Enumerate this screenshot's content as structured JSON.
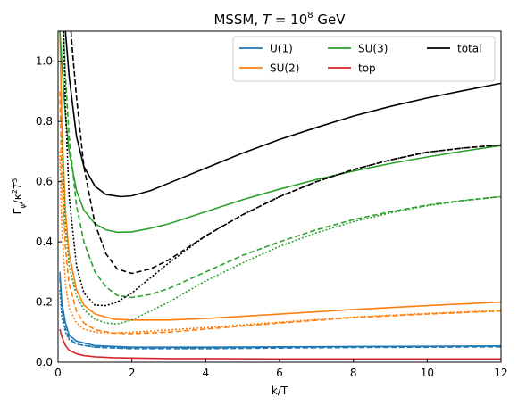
{
  "chart_data": {
    "type": "line",
    "title_main": "MSSM, ",
    "title_math": "T",
    "title_eq": " = 10",
    "title_exp": "8",
    "title_unit": " GeV",
    "xlabel": "k/T",
    "ylabel_gamma": "Γ",
    "ylabel_sub": "ψ",
    "ylabel_rest": "/κ",
    "ylabel_sup1": "2",
    "ylabel_T": "T",
    "ylabel_sup2": "3",
    "xlim": [
      0,
      12
    ],
    "ylim": [
      0,
      1.1
    ],
    "x_ticks": [
      0,
      2,
      4,
      6,
      8,
      10,
      12
    ],
    "x_tick_labels": [
      "0",
      "2",
      "4",
      "6",
      "8",
      "10",
      "12"
    ],
    "y_ticks": [
      0.0,
      0.2,
      0.4,
      0.6,
      0.8,
      1.0
    ],
    "y_tick_labels": [
      "0.0",
      "0.2",
      "0.4",
      "0.6",
      "0.8",
      "1.0"
    ],
    "grid": false,
    "legend_position": "top-right",
    "legend_columns": 3,
    "legend": [
      {
        "label": "U(1)",
        "color": "#1f77b4"
      },
      {
        "label": "SU(2)",
        "color": "#ff7f0e"
      },
      {
        "label": "SU(3)",
        "color": "#2ca02c"
      },
      {
        "label": "top",
        "color": "#d62728"
      },
      {
        "label": "total",
        "color": "#000000"
      }
    ],
    "series": [
      {
        "group": "U(1)",
        "style": "solid",
        "color": "#1f77b4",
        "x": [
          0.05,
          0.1,
          0.2,
          0.3,
          0.5,
          1,
          2,
          4,
          6,
          8,
          10,
          12
        ],
        "y": [
          0.3,
          0.2,
          0.13,
          0.09,
          0.07,
          0.055,
          0.05,
          0.05,
          0.051,
          0.052,
          0.053,
          0.054
        ]
      },
      {
        "group": "U(1)",
        "style": "dashed",
        "color": "#1f77b4",
        "x": [
          0.05,
          0.1,
          0.2,
          0.3,
          0.5,
          1,
          2,
          4,
          6,
          8,
          10,
          12
        ],
        "y": [
          0.28,
          0.18,
          0.11,
          0.08,
          0.06,
          0.05,
          0.045,
          0.045,
          0.047,
          0.049,
          0.05,
          0.051
        ]
      },
      {
        "group": "U(1)",
        "style": "dotted",
        "color": "#1f77b4",
        "x": [
          0.05,
          0.1,
          0.2,
          0.3,
          0.5,
          1,
          2,
          4,
          6,
          8,
          10,
          12
        ],
        "y": [
          0.24,
          0.15,
          0.1,
          0.075,
          0.06,
          0.05,
          0.046,
          0.047,
          0.049,
          0.051,
          0.052,
          0.053
        ]
      },
      {
        "group": "SU(2)",
        "style": "solid",
        "color": "#ff7f0e",
        "x": [
          0.05,
          0.1,
          0.2,
          0.3,
          0.5,
          0.7,
          1,
          1.5,
          2,
          3,
          4,
          6,
          8,
          10,
          12
        ],
        "y": [
          1.1,
          0.8,
          0.5,
          0.36,
          0.24,
          0.19,
          0.16,
          0.143,
          0.14,
          0.14,
          0.145,
          0.16,
          0.175,
          0.188,
          0.2
        ]
      },
      {
        "group": "SU(2)",
        "style": "dashed",
        "color": "#ff7f0e",
        "x": [
          0.05,
          0.1,
          0.2,
          0.3,
          0.5,
          0.7,
          1,
          1.5,
          2,
          3,
          4,
          6,
          8,
          10,
          12
        ],
        "y": [
          0.9,
          0.62,
          0.38,
          0.26,
          0.17,
          0.13,
          0.108,
          0.097,
          0.095,
          0.1,
          0.11,
          0.13,
          0.148,
          0.16,
          0.17
        ]
      },
      {
        "group": "SU(2)",
        "style": "dotted",
        "color": "#ff7f0e",
        "x": [
          0.05,
          0.1,
          0.2,
          0.3,
          0.5,
          0.7,
          1,
          1.5,
          2,
          3,
          4,
          6,
          8,
          10,
          12
        ],
        "y": [
          0.7,
          0.45,
          0.26,
          0.18,
          0.13,
          0.11,
          0.1,
          0.097,
          0.1,
          0.107,
          0.115,
          0.133,
          0.15,
          0.162,
          0.172
        ]
      },
      {
        "group": "SU(3)",
        "style": "solid",
        "color": "#2ca02c",
        "x": [
          0.05,
          0.1,
          0.2,
          0.3,
          0.5,
          0.7,
          1,
          1.3,
          1.6,
          2,
          2.5,
          3,
          4,
          5,
          6,
          7,
          8,
          9,
          10,
          11,
          12
        ],
        "y": [
          1.1,
          1.0,
          0.82,
          0.7,
          0.57,
          0.505,
          0.46,
          0.44,
          0.432,
          0.433,
          0.445,
          0.46,
          0.5,
          0.54,
          0.575,
          0.607,
          0.635,
          0.66,
          0.682,
          0.702,
          0.72
        ]
      },
      {
        "group": "SU(3)",
        "style": "dashed",
        "color": "#2ca02c",
        "x": [
          0.15,
          0.2,
          0.3,
          0.5,
          0.7,
          1,
          1.3,
          1.6,
          2,
          2.5,
          3,
          4,
          5,
          6,
          7,
          8,
          9,
          10,
          11,
          12
        ],
        "y": [
          1.1,
          0.95,
          0.75,
          0.52,
          0.4,
          0.3,
          0.25,
          0.222,
          0.215,
          0.225,
          0.245,
          0.3,
          0.355,
          0.4,
          0.44,
          0.474,
          0.5,
          0.522,
          0.538,
          0.55
        ]
      },
      {
        "group": "SU(3)",
        "style": "dotted",
        "color": "#2ca02c",
        "x": [
          0.1,
          0.2,
          0.3,
          0.5,
          0.7,
          1,
          1.3,
          1.6,
          2,
          2.5,
          3,
          4,
          5,
          6,
          7,
          8,
          9,
          10,
          11,
          12
        ],
        "y": [
          0.75,
          0.45,
          0.32,
          0.22,
          0.175,
          0.143,
          0.13,
          0.127,
          0.14,
          0.17,
          0.2,
          0.27,
          0.33,
          0.385,
          0.43,
          0.467,
          0.496,
          0.52,
          0.537,
          0.55
        ]
      },
      {
        "group": "top",
        "style": "solid",
        "color": "#d62728",
        "x": [
          0.05,
          0.1,
          0.2,
          0.3,
          0.5,
          0.7,
          1,
          1.5,
          2,
          3,
          4,
          6,
          8,
          10,
          12
        ],
        "y": [
          0.11,
          0.085,
          0.055,
          0.04,
          0.028,
          0.022,
          0.018,
          0.015,
          0.014,
          0.012,
          0.012,
          0.011,
          0.011,
          0.011,
          0.011
        ]
      },
      {
        "group": "total",
        "style": "solid",
        "color": "#000000",
        "x": [
          0.2,
          0.3,
          0.5,
          0.7,
          1,
          1.3,
          1.7,
          2,
          2.5,
          3,
          4,
          5,
          6,
          7,
          8,
          9,
          10,
          11,
          12
        ],
        "y": [
          1.1,
          0.95,
          0.75,
          0.65,
          0.585,
          0.557,
          0.55,
          0.553,
          0.57,
          0.595,
          0.645,
          0.695,
          0.74,
          0.78,
          0.818,
          0.85,
          0.878,
          0.903,
          0.927
        ]
      },
      {
        "group": "total",
        "style": "dashed",
        "color": "#000000",
        "x": [
          0.35,
          0.4,
          0.5,
          0.7,
          1,
          1.3,
          1.6,
          2,
          2.5,
          3,
          4,
          5,
          6,
          7,
          8,
          9,
          10,
          11,
          12
        ],
        "y": [
          1.1,
          1.02,
          0.88,
          0.65,
          0.46,
          0.36,
          0.31,
          0.295,
          0.31,
          0.34,
          0.42,
          0.49,
          0.55,
          0.6,
          0.64,
          0.672,
          0.698,
          0.712,
          0.722
        ]
      },
      {
        "group": "total",
        "style": "dotted",
        "color": "#000000",
        "x": [
          0.15,
          0.2,
          0.3,
          0.5,
          0.7,
          1,
          1.3,
          1.6,
          2,
          2.5,
          3,
          4,
          5,
          6,
          7,
          8,
          9,
          10,
          11,
          12
        ],
        "y": [
          1.1,
          0.85,
          0.55,
          0.32,
          0.23,
          0.19,
          0.188,
          0.2,
          0.23,
          0.28,
          0.33,
          0.42,
          0.49,
          0.55,
          0.6,
          0.64,
          0.672,
          0.698,
          0.712,
          0.722
        ]
      }
    ]
  }
}
